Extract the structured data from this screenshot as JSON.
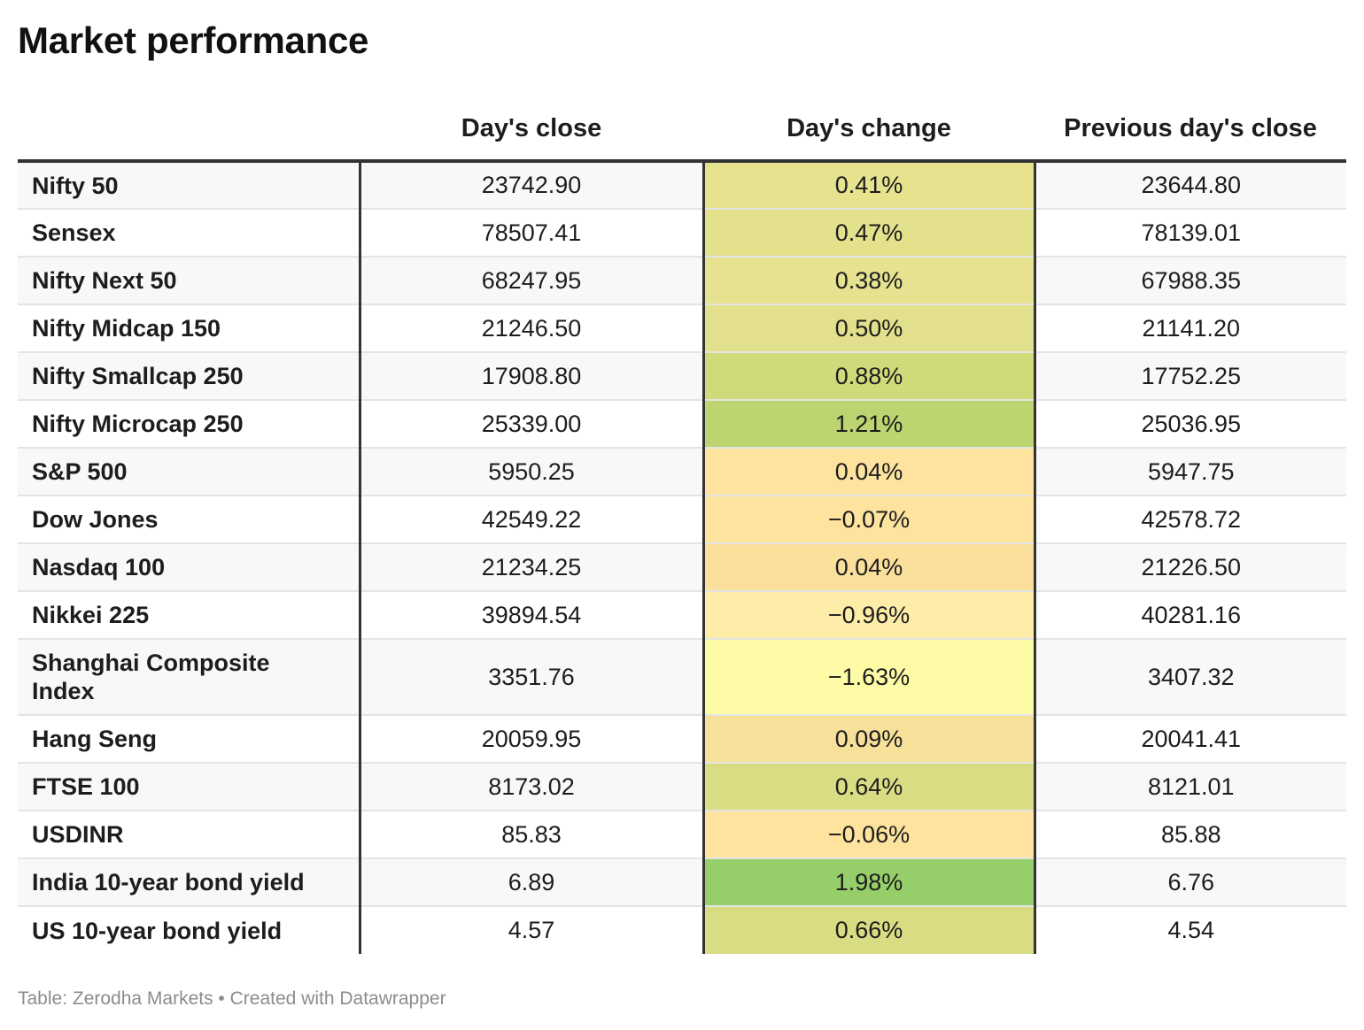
{
  "title": "Market performance",
  "columns": [
    "",
    "Day's close",
    "Day's change",
    "Previous day's close"
  ],
  "rows": [
    {
      "name": "Nifty 50",
      "close": "23742.90",
      "change": "0.41%",
      "prev": "23644.80"
    },
    {
      "name": "Sensex",
      "close": "78507.41",
      "change": "0.47%",
      "prev": "78139.01"
    },
    {
      "name": "Nifty Next 50",
      "close": "68247.95",
      "change": "0.38%",
      "prev": "67988.35"
    },
    {
      "name": "Nifty Midcap 150",
      "close": "21246.50",
      "change": "0.50%",
      "prev": "21141.20"
    },
    {
      "name": "Nifty Smallcap 250",
      "close": "17908.80",
      "change": "0.88%",
      "prev": "17752.25"
    },
    {
      "name": "Nifty Microcap 250",
      "close": "25339.00",
      "change": "1.21%",
      "prev": "25036.95"
    },
    {
      "name": "S&P 500",
      "close": "5950.25",
      "change": "0.04%",
      "prev": "5947.75"
    },
    {
      "name": "Dow Jones",
      "close": "42549.22",
      "change": "−0.07%",
      "prev": "42578.72"
    },
    {
      "name": "Nasdaq 100",
      "close": "21234.25",
      "change": "0.04%",
      "prev": "21226.50"
    },
    {
      "name": "Nikkei 225",
      "close": "39894.54",
      "change": "−0.96%",
      "prev": "40281.16"
    },
    {
      "name": "Shanghai Composite Index",
      "close": "3351.76",
      "change": "−1.63%",
      "prev": "3407.32"
    },
    {
      "name": "Hang Seng",
      "close": "20059.95",
      "change": "0.09%",
      "prev": "20041.41"
    },
    {
      "name": "FTSE 100",
      "close": "8173.02",
      "change": "0.64%",
      "prev": "8121.01"
    },
    {
      "name": "USDINR",
      "close": "85.83",
      "change": "−0.06%",
      "prev": "85.88"
    },
    {
      "name": "India 10-year bond yield",
      "close": "6.89",
      "change": "1.98%",
      "prev": "6.76"
    },
    {
      "name": "US 10-year bond yield",
      "close": "4.57",
      "change": "0.66%",
      "prev": "4.54"
    }
  ],
  "change_colors": [
    "#e6e28e",
    "#e4e18d",
    "#e6e290",
    "#e2e08c",
    "#cfdb7a",
    "#bcd570",
    "#fde39e",
    "#fde39e",
    "#fbe09c",
    "#fdeda8",
    "#fdfba6",
    "#f6e09a",
    "#dadc84",
    "#fde39e",
    "#96cf6a",
    "#d9dc83"
  ],
  "footer": "Table: Zerodha Markets • Created with Datawrapper",
  "chart_data": {
    "type": "table",
    "title": "Market performance",
    "columns": [
      "",
      "Day's close",
      "Day's change",
      "Previous day's close"
    ],
    "categories": [
      "Nifty 50",
      "Sensex",
      "Nifty Next 50",
      "Nifty Midcap 150",
      "Nifty Smallcap 250",
      "Nifty Microcap 250",
      "S&P 500",
      "Dow Jones",
      "Nasdaq 100",
      "Nikkei 225",
      "Shanghai Composite Index",
      "Hang Seng",
      "FTSE 100",
      "USDINR",
      "India 10-year bond yield",
      "US 10-year bond yield"
    ],
    "series": [
      {
        "name": "Day's close",
        "values": [
          23742.9,
          78507.41,
          68247.95,
          21246.5,
          17908.8,
          25339.0,
          5950.25,
          42549.22,
          21234.25,
          39894.54,
          3351.76,
          20059.95,
          8173.02,
          85.83,
          6.89,
          4.57
        ]
      },
      {
        "name": "Day's change",
        "values": [
          0.41,
          0.47,
          0.38,
          0.5,
          0.88,
          1.21,
          0.04,
          -0.07,
          0.04,
          -0.96,
          -1.63,
          0.09,
          0.64,
          -0.06,
          1.98,
          0.66
        ]
      },
      {
        "name": "Previous day's close",
        "values": [
          23644.8,
          78139.01,
          67988.35,
          21141.2,
          17752.25,
          25036.95,
          5947.75,
          42578.72,
          21226.5,
          40281.16,
          3407.32,
          20041.41,
          8121.01,
          85.88,
          6.76,
          4.54
        ]
      }
    ]
  }
}
